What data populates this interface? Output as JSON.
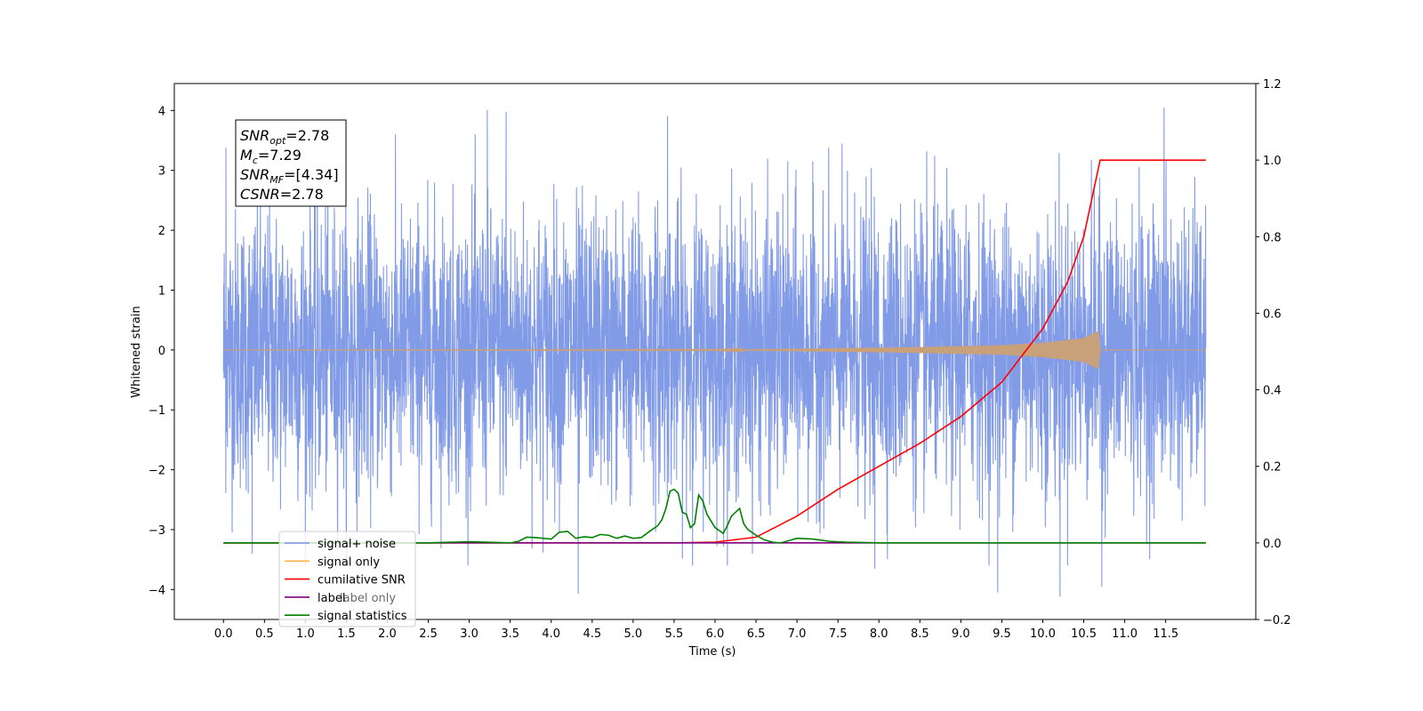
{
  "chart_data": {
    "type": "line",
    "title": "",
    "xlabel": "Time (s)",
    "ylabel": "Whitened strain",
    "y2label": "",
    "xlim": [
      -0.6,
      12.6
    ],
    "ylim": [
      -4.5,
      4.45
    ],
    "y2lim": [
      -0.2,
      1.2
    ],
    "x_ticks": [
      0.0,
      0.5,
      1.0,
      1.5,
      2.0,
      2.5,
      3.0,
      3.5,
      4.0,
      4.5,
      5.0,
      5.5,
      6.0,
      6.5,
      7.0,
      7.5,
      8.0,
      8.5,
      9.0,
      9.5,
      10.0,
      10.5,
      11.0,
      11.5
    ],
    "x_tick_labels": [
      "0.0",
      "0.5",
      "1.0",
      "1.5",
      "2.0",
      "2.5",
      "3.0",
      "3.5",
      "4.0",
      "4.5",
      "5.0",
      "5.5",
      "6.0",
      "6.5",
      "7.0",
      "7.5",
      "8.0",
      "8.5",
      "9.0",
      "9.5",
      "10.0",
      "10.5",
      "11.0",
      "11.5"
    ],
    "y_ticks": [
      -4,
      -3,
      -2,
      -1,
      0,
      1,
      2,
      3,
      4
    ],
    "y_tick_labels": [
      "−4",
      "−3",
      "−2",
      "−1",
      "0",
      "1",
      "2",
      "3",
      "4"
    ],
    "y2_ticks": [
      -0.2,
      0.0,
      0.2,
      0.4,
      0.6,
      0.8,
      1.0,
      1.2
    ],
    "y2_tick_labels": [
      "−0.2",
      "0.0",
      "0.2",
      "0.4",
      "0.6",
      "0.8",
      "1.0",
      "1.2"
    ],
    "grid": false,
    "legend_position": "bottom-left",
    "annotation": {
      "lines": [
        {
          "main": "SNR",
          "sub": "opt",
          "rest": "=2.78"
        },
        {
          "main": "M",
          "sub": "c",
          "rest": "=7.29"
        },
        {
          "main": "SNR",
          "sub": "MF",
          "rest": "=[4.34]"
        },
        {
          "main": "CSNR",
          "sub": "",
          "rest": "=2.78"
        }
      ]
    },
    "series": [
      {
        "name": "signal+ noise",
        "axis": "left",
        "color": "#7b96e6",
        "kind": "noise",
        "x_range": [
          0.0,
          11.99
        ],
        "typical_range": [
          -1.8,
          1.8
        ],
        "peaks": [
          {
            "x": 0.03,
            "y": 3.38
          },
          {
            "x": 3.22,
            "y": 4.01
          },
          {
            "x": 3.45,
            "y": 3.98
          },
          {
            "x": 5.42,
            "y": 3.91
          },
          {
            "x": 11.48,
            "y": 4.05
          },
          {
            "x": 0.35,
            "y": -3.4
          },
          {
            "x": 4.33,
            "y": -4.07
          },
          {
            "x": 9.45,
            "y": -4.05
          },
          {
            "x": 10.21,
            "y": -4.12
          },
          {
            "x": 10.72,
            "y": -3.95
          },
          {
            "x": 7.95,
            "y": -3.65
          }
        ]
      },
      {
        "name": "signal only",
        "axis": "left",
        "color": "#c8a07a",
        "kind": "chirp",
        "x": [
          0.0,
          6.0,
          7.5,
          8.5,
          9.5,
          10.0,
          10.5,
          10.68,
          10.7,
          11.99
        ],
        "amplitude": [
          0.0,
          0.005,
          0.03,
          0.05,
          0.08,
          0.12,
          0.2,
          0.32,
          0.0,
          0.0
        ]
      },
      {
        "name": "cumilative SNR",
        "axis": "right",
        "color": "#ff0000",
        "x": [
          0.0,
          5.5,
          6.0,
          6.5,
          7.0,
          7.5,
          8.0,
          8.5,
          9.0,
          9.5,
          10.0,
          10.3,
          10.5,
          10.6,
          10.7,
          10.71,
          11.99
        ],
        "values": [
          0.0,
          0.0,
          0.002,
          0.015,
          0.07,
          0.14,
          0.2,
          0.26,
          0.33,
          0.42,
          0.56,
          0.68,
          0.8,
          0.9,
          1.0,
          1.0,
          1.0
        ]
      },
      {
        "name": "label",
        "axis": "right",
        "color": "#800080",
        "x": [
          0.0,
          11.99
        ],
        "values": [
          0.0,
          0.0
        ]
      },
      {
        "name": "signal statistics",
        "axis": "right",
        "color": "#008000",
        "x": [
          0.0,
          2.5,
          3.0,
          3.5,
          3.6,
          3.7,
          3.8,
          4.0,
          4.1,
          4.2,
          4.3,
          4.4,
          4.5,
          4.6,
          4.7,
          4.8,
          4.9,
          5.0,
          5.1,
          5.2,
          5.3,
          5.35,
          5.4,
          5.45,
          5.5,
          5.55,
          5.6,
          5.65,
          5.7,
          5.75,
          5.8,
          5.85,
          5.9,
          6.0,
          6.1,
          6.15,
          6.2,
          6.3,
          6.35,
          6.4,
          6.5,
          6.6,
          6.7,
          6.8,
          7.0,
          7.2,
          7.4,
          7.6,
          8.0,
          9.0,
          10.0,
          11.99
        ],
        "values": [
          0.0,
          0.0,
          0.003,
          0.0,
          0.004,
          0.015,
          0.014,
          0.01,
          0.028,
          0.03,
          0.012,
          0.016,
          0.014,
          0.022,
          0.02,
          0.012,
          0.018,
          0.012,
          0.014,
          0.03,
          0.045,
          0.06,
          0.09,
          0.135,
          0.14,
          0.13,
          0.08,
          0.075,
          0.04,
          0.05,
          0.125,
          0.11,
          0.075,
          0.04,
          0.025,
          0.045,
          0.07,
          0.09,
          0.05,
          0.035,
          0.02,
          0.008,
          0.002,
          0.0,
          0.012,
          0.01,
          0.004,
          0.002,
          0.0,
          0.0,
          0.0,
          0.0
        ]
      }
    ],
    "legend": [
      {
        "label": "signal+ noise",
        "color": "#7b96e6"
      },
      {
        "label": "signal only",
        "color": "#ffb347"
      },
      {
        "label": "cumilative SNR",
        "color": "#ff0000"
      },
      {
        "label": "label",
        "color": "#800080"
      },
      {
        "label": "signal statistics",
        "color": "#008000"
      }
    ],
    "legend_hidden_text": "label only"
  }
}
